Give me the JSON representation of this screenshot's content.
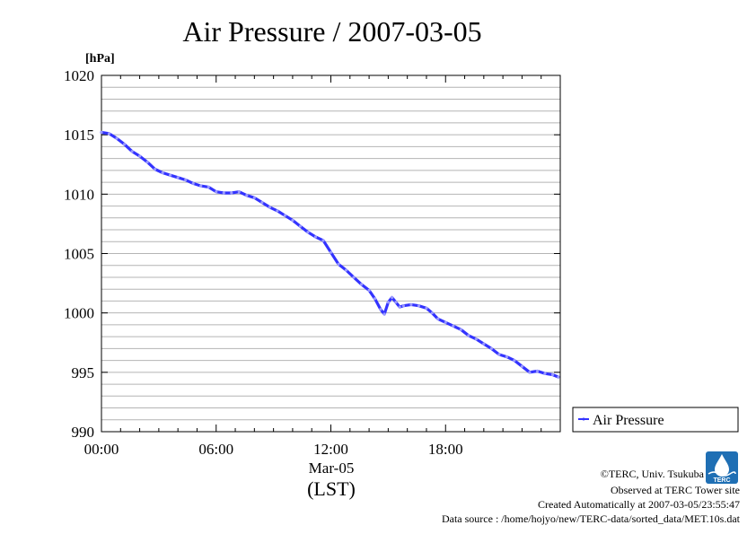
{
  "chart_data": {
    "type": "line",
    "title": "Air Pressure / 2007-03-05",
    "ylabel": "[hPa]",
    "xlabel": "(LST)",
    "x_sublabel": "Mar-05",
    "xlim": [
      0,
      24
    ],
    "ylim": [
      990,
      1020
    ],
    "x_ticks": [
      {
        "value": 0,
        "label": "00:00"
      },
      {
        "value": 6,
        "label": "06:00"
      },
      {
        "value": 12,
        "label": "12:00"
      },
      {
        "value": 18,
        "label": "18:00"
      }
    ],
    "y_ticks": [
      {
        "value": 990,
        "label": "990"
      },
      {
        "value": 995,
        "label": "995"
      },
      {
        "value": 1000,
        "label": "1000"
      },
      {
        "value": 1005,
        "label": "1005"
      },
      {
        "value": 1010,
        "label": "1010"
      },
      {
        "value": 1015,
        "label": "1015"
      },
      {
        "value": 1020,
        "label": "1020"
      }
    ],
    "grid": true,
    "legend_position": "bottom-right outside",
    "series": [
      {
        "name": "Air Pressure",
        "color": "#3333ff",
        "x": [
          0,
          0.4,
          0.8,
          1.2,
          1.6,
          2.0,
          2.4,
          2.8,
          3.2,
          3.6,
          4.0,
          4.4,
          4.8,
          5.2,
          5.6,
          6.0,
          6.4,
          6.8,
          7.2,
          7.6,
          8.0,
          8.4,
          8.8,
          9.2,
          9.6,
          10.0,
          10.4,
          10.8,
          11.2,
          11.6,
          12.0,
          12.4,
          12.8,
          13.2,
          13.6,
          14.0,
          14.3,
          14.6,
          14.8,
          15.0,
          15.2,
          15.4,
          15.6,
          15.8,
          16.2,
          16.6,
          17.0,
          17.3,
          17.6,
          18.0,
          18.4,
          18.8,
          19.2,
          19.6,
          20.0,
          20.4,
          20.8,
          21.2,
          21.6,
          22.0,
          22.4,
          22.8,
          23.2,
          23.6,
          23.9
        ],
        "values": [
          1015.2,
          1015.1,
          1014.7,
          1014.2,
          1013.6,
          1013.2,
          1012.7,
          1012.1,
          1011.8,
          1011.6,
          1011.4,
          1011.2,
          1010.9,
          1010.7,
          1010.6,
          1010.2,
          1010.1,
          1010.1,
          1010.2,
          1009.9,
          1009.7,
          1009.3,
          1008.9,
          1008.6,
          1008.2,
          1007.8,
          1007.3,
          1006.8,
          1006.4,
          1006.1,
          1005.1,
          1004.1,
          1003.6,
          1003.0,
          1002.4,
          1001.9,
          1001.2,
          1000.3,
          999.9,
          1000.9,
          1001.3,
          1000.9,
          1000.5,
          1000.6,
          1000.7,
          1000.6,
          1000.4,
          1000.0,
          999.5,
          999.2,
          998.9,
          998.6,
          998.1,
          997.8,
          997.4,
          997.0,
          996.5,
          996.3,
          996.0,
          995.5,
          995.0,
          995.1,
          994.9,
          994.8,
          994.6
        ]
      }
    ]
  },
  "credits": {
    "copyright": "©TERC, Univ. Tsukuba",
    "observed": "Observed at TERC Tower site",
    "created": "Created Automatically at 2007-03-05/23:55:47",
    "source": "Data source : /home/hojyo/new/TERC-data/sorted_data/MET.10s.dat",
    "logo_text": "TERC"
  }
}
